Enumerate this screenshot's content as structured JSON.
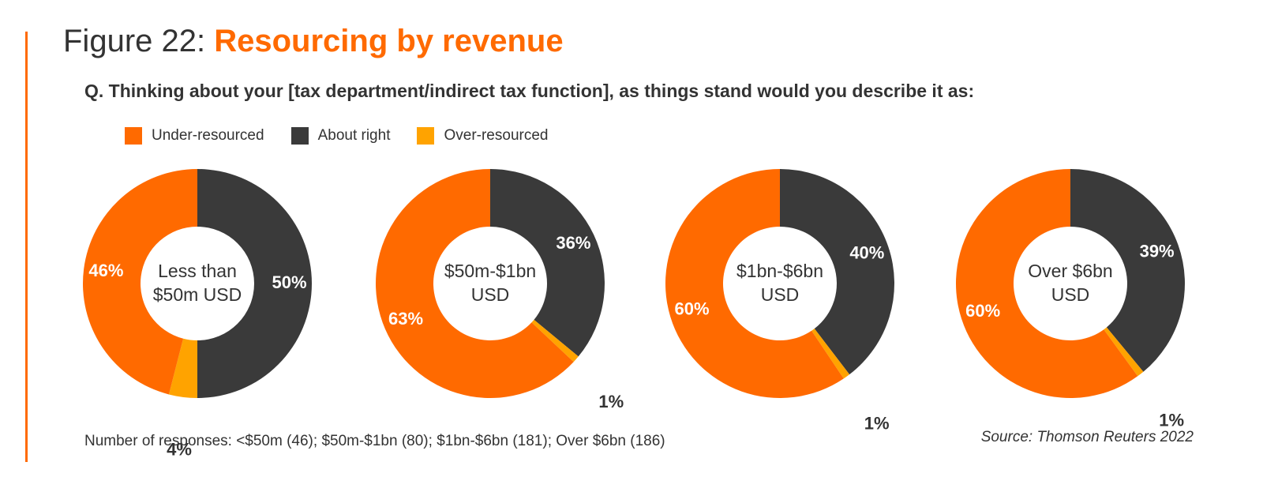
{
  "header": {
    "title_prefix": "Figure 22:",
    "title_main": "Resourcing by revenue",
    "question": "Q. Thinking about your [tax department/indirect tax function], as things stand would you describe it as:"
  },
  "colors": {
    "under": "#ff6a00",
    "about": "#3a3a3a",
    "over": "#ffa300",
    "accent": "#ff6a00",
    "text": "#333333"
  },
  "legend": [
    {
      "label": "Under-resourced",
      "color": "#ff6a00"
    },
    {
      "label": "About right",
      "color": "#3a3a3a"
    },
    {
      "label": "Over-resourced",
      "color": "#ffa300"
    }
  ],
  "chart_data": [
    {
      "type": "pie",
      "center_label": [
        "Less than",
        "$50m USD"
      ],
      "categories": [
        "About right",
        "Over-resourced",
        "Under-resourced"
      ],
      "values": [
        50,
        4,
        46
      ],
      "labels": [
        "50%",
        "4%",
        "46%"
      ]
    },
    {
      "type": "pie",
      "center_label": [
        "$50m-$1bn",
        "USD"
      ],
      "categories": [
        "About right",
        "Over-resourced",
        "Under-resourced"
      ],
      "values": [
        36,
        1,
        63
      ],
      "labels": [
        "36%",
        "1%",
        "63%"
      ]
    },
    {
      "type": "pie",
      "center_label": [
        "$1bn-$6bn",
        "USD"
      ],
      "categories": [
        "About right",
        "Over-resourced",
        "Under-resourced"
      ],
      "values": [
        40,
        1,
        60
      ],
      "labels": [
        "40%",
        "1%",
        "60%"
      ]
    },
    {
      "type": "pie",
      "center_label": [
        "Over $6bn",
        "USD"
      ],
      "categories": [
        "About right",
        "Over-resourced",
        "Under-resourced"
      ],
      "values": [
        39,
        1,
        60
      ],
      "labels": [
        "39%",
        "1%",
        "60%"
      ]
    }
  ],
  "footer": {
    "note": "Number of responses: <$50m (46); $50m-$1bn (80); $1bn-$6bn (181); Over $6bn (186)",
    "source": "Source: Thomson Reuters 2022"
  }
}
